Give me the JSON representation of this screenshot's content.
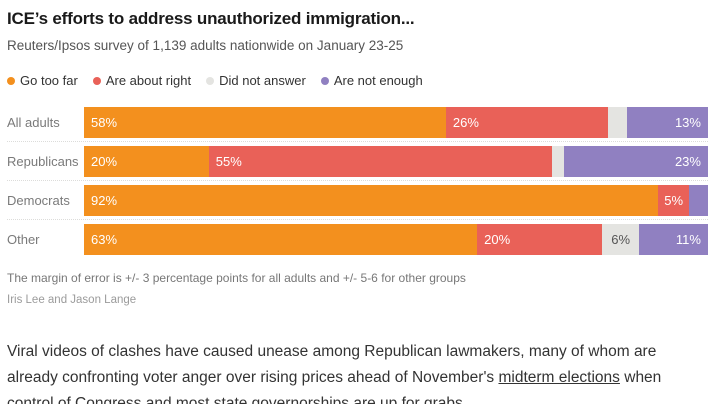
{
  "header": {
    "title": "ICE’s efforts to address unauthorized immigration...",
    "subtitle": "Reuters/Ipsos survey of 1,139 adults nationwide on January 23-25"
  },
  "chart_data": {
    "type": "bar",
    "stacked": true,
    "orientation": "horizontal",
    "title": "ICE’s efforts to address unauthorized immigration...",
    "subtitle": "Reuters/Ipsos survey of 1,139 adults nationwide on January 23-25",
    "xlim": [
      0,
      100
    ],
    "unit": "%",
    "grid": false,
    "legend_position": "top",
    "categories": [
      "All adults",
      "Republicans",
      "Democrats",
      "Other"
    ],
    "series": [
      {
        "name": "Go too far",
        "color": "#F3901E",
        "values": [
          58,
          20,
          92,
          63
        ]
      },
      {
        "name": "Are about right",
        "color": "#E96158",
        "values": [
          26,
          55,
          5,
          20
        ]
      },
      {
        "name": "Did not answer",
        "color": "#E4E4E1",
        "values": [
          3,
          2,
          0,
          6
        ],
        "text_dark": true
      },
      {
        "name": "Are not enough",
        "color": "#9080C1",
        "values": [
          13,
          23,
          3,
          11
        ]
      }
    ]
  },
  "footnotes": {
    "margin_of_error": "The margin of error is +/- 3 percentage points for all adults and +/- 5-6 for other groups",
    "credit": "Iris Lee and Jason Lange"
  },
  "article": {
    "before_link": "Viral videos of clashes have caused unease among Republican lawmakers, many of whom are already confronting voter anger over rising prices ahead of November's ",
    "link_text": "midterm elections",
    "after_link": " when control of Congress and most state governorships are up for grabs."
  }
}
